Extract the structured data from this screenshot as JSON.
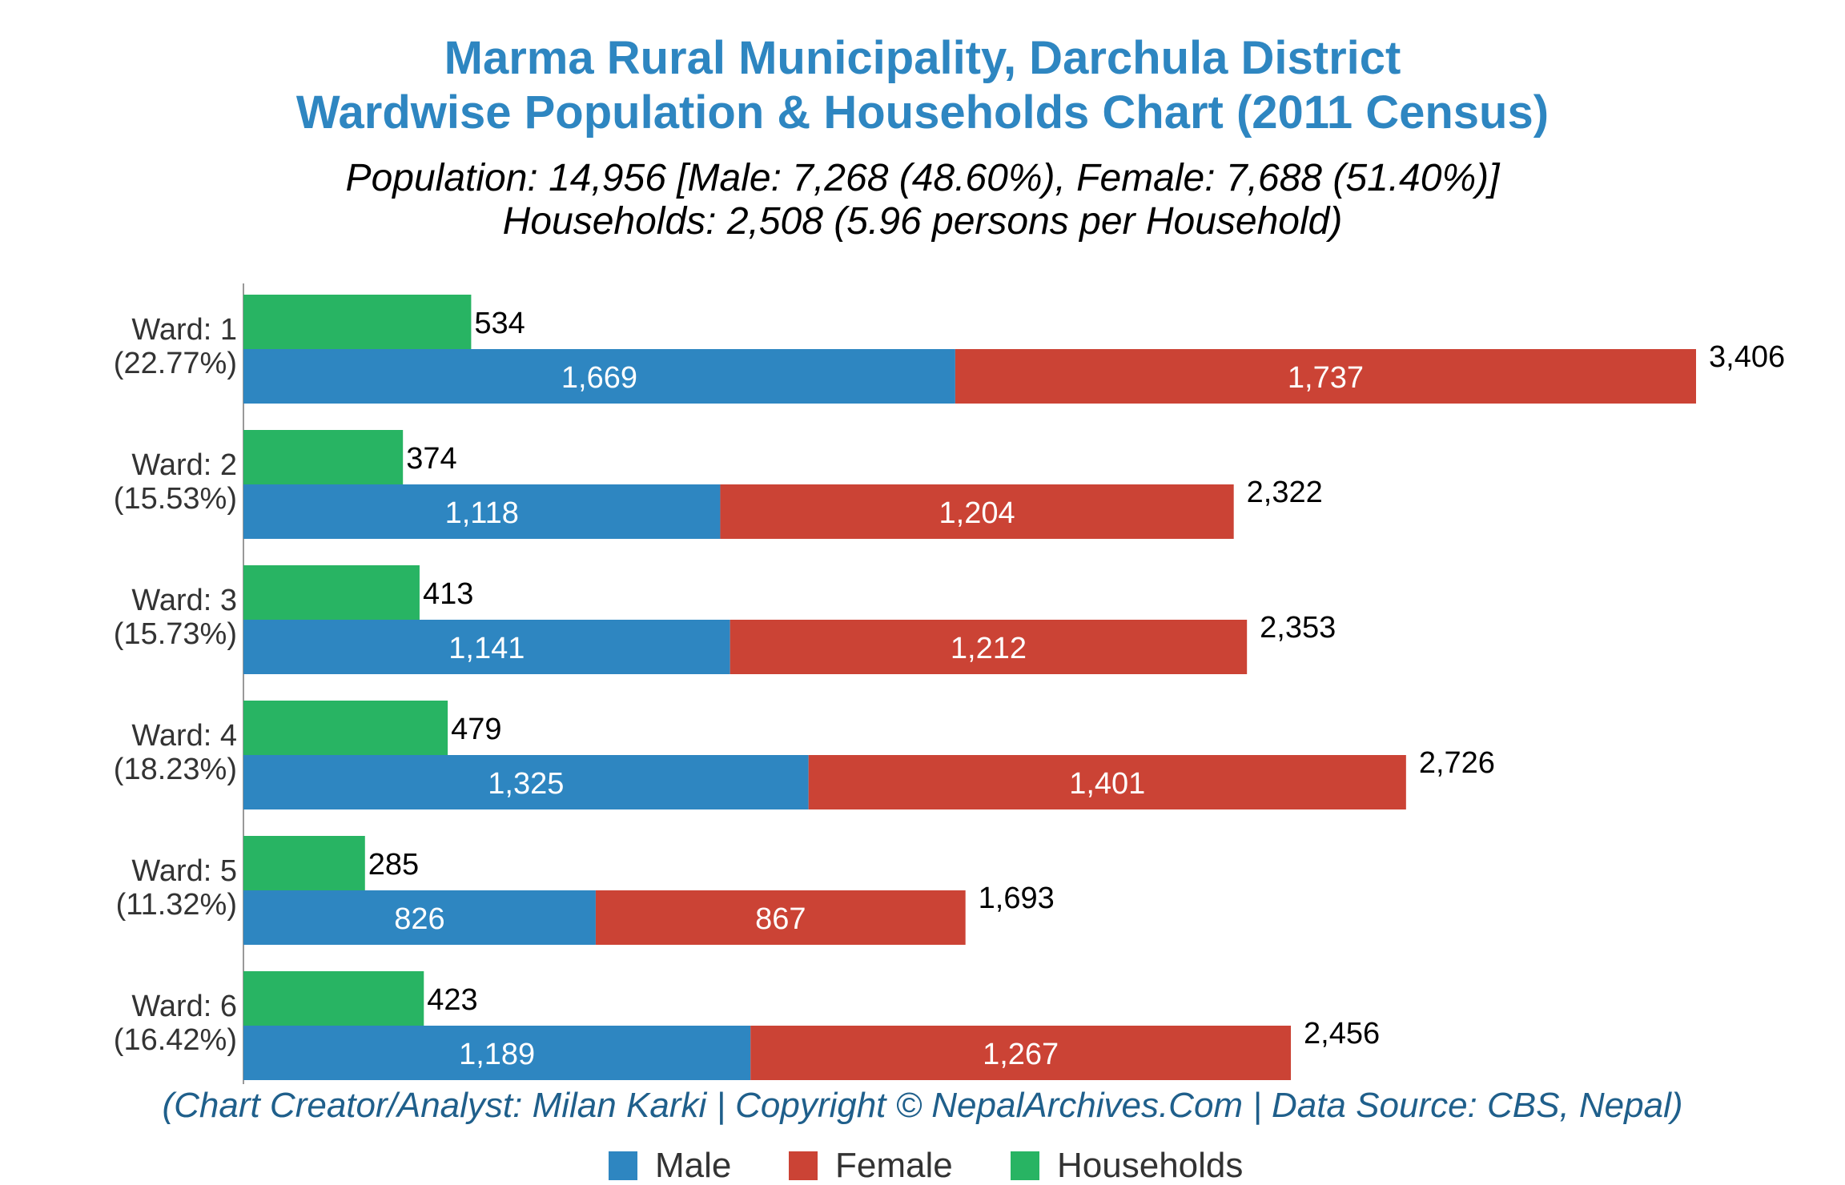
{
  "title_line1": "Marma Rural Municipality, Darchula District",
  "title_line2": "Wardwise Population & Households Chart (2011 Census)",
  "subtitle_line1": "Population: 14,956 [Male: 7,268 (48.60%), Female: 7,688 (51.40%)]",
  "subtitle_line2": "Households: 2,508 (5.96 persons per Household)",
  "credit": "(Chart Creator/Analyst: Milan Karki | Copyright © NepalArchives.Com | Data Source: CBS, Nepal)",
  "colors": {
    "male": "#2e86c1",
    "female": "#cb4335",
    "households": "#28b463",
    "title": "#2e86c1",
    "credit": "#1f5f8b"
  },
  "chart_data": {
    "type": "bar",
    "orientation": "horizontal",
    "stacked_population": true,
    "categories": [
      "Ward: 1",
      "Ward: 2",
      "Ward: 3",
      "Ward: 4",
      "Ward: 5",
      "Ward: 6"
    ],
    "category_percents": [
      "(22.77%)",
      "(15.53%)",
      "(15.73%)",
      "(18.23%)",
      "(11.32%)",
      "(16.42%)"
    ],
    "series": [
      {
        "name": "Male",
        "values": [
          1669,
          1118,
          1141,
          1325,
          826,
          1189
        ],
        "labels": [
          "1,669",
          "1,118",
          "1,141",
          "1,325",
          "826",
          "1,189"
        ]
      },
      {
        "name": "Female",
        "values": [
          1737,
          1204,
          1212,
          1401,
          867,
          1267
        ],
        "labels": [
          "1,737",
          "1,204",
          "1,212",
          "1,401",
          "867",
          "1,267"
        ]
      },
      {
        "name": "Households",
        "values": [
          534,
          374,
          413,
          479,
          285,
          423
        ],
        "labels": [
          "534",
          "374",
          "413",
          "479",
          "285",
          "423"
        ]
      }
    ],
    "totals": [
      3406,
      2322,
      2353,
      2726,
      1693,
      2456
    ],
    "total_labels": [
      "3,406",
      "2,322",
      "2,353",
      "2,726",
      "1,693",
      "2,456"
    ],
    "xlim": [
      0,
      3600
    ],
    "grid": false,
    "legend_position": "bottom"
  },
  "legend": [
    {
      "label": "Male",
      "color": "#2e86c1"
    },
    {
      "label": "Female",
      "color": "#cb4335"
    },
    {
      "label": "Households",
      "color": "#28b463"
    }
  ]
}
